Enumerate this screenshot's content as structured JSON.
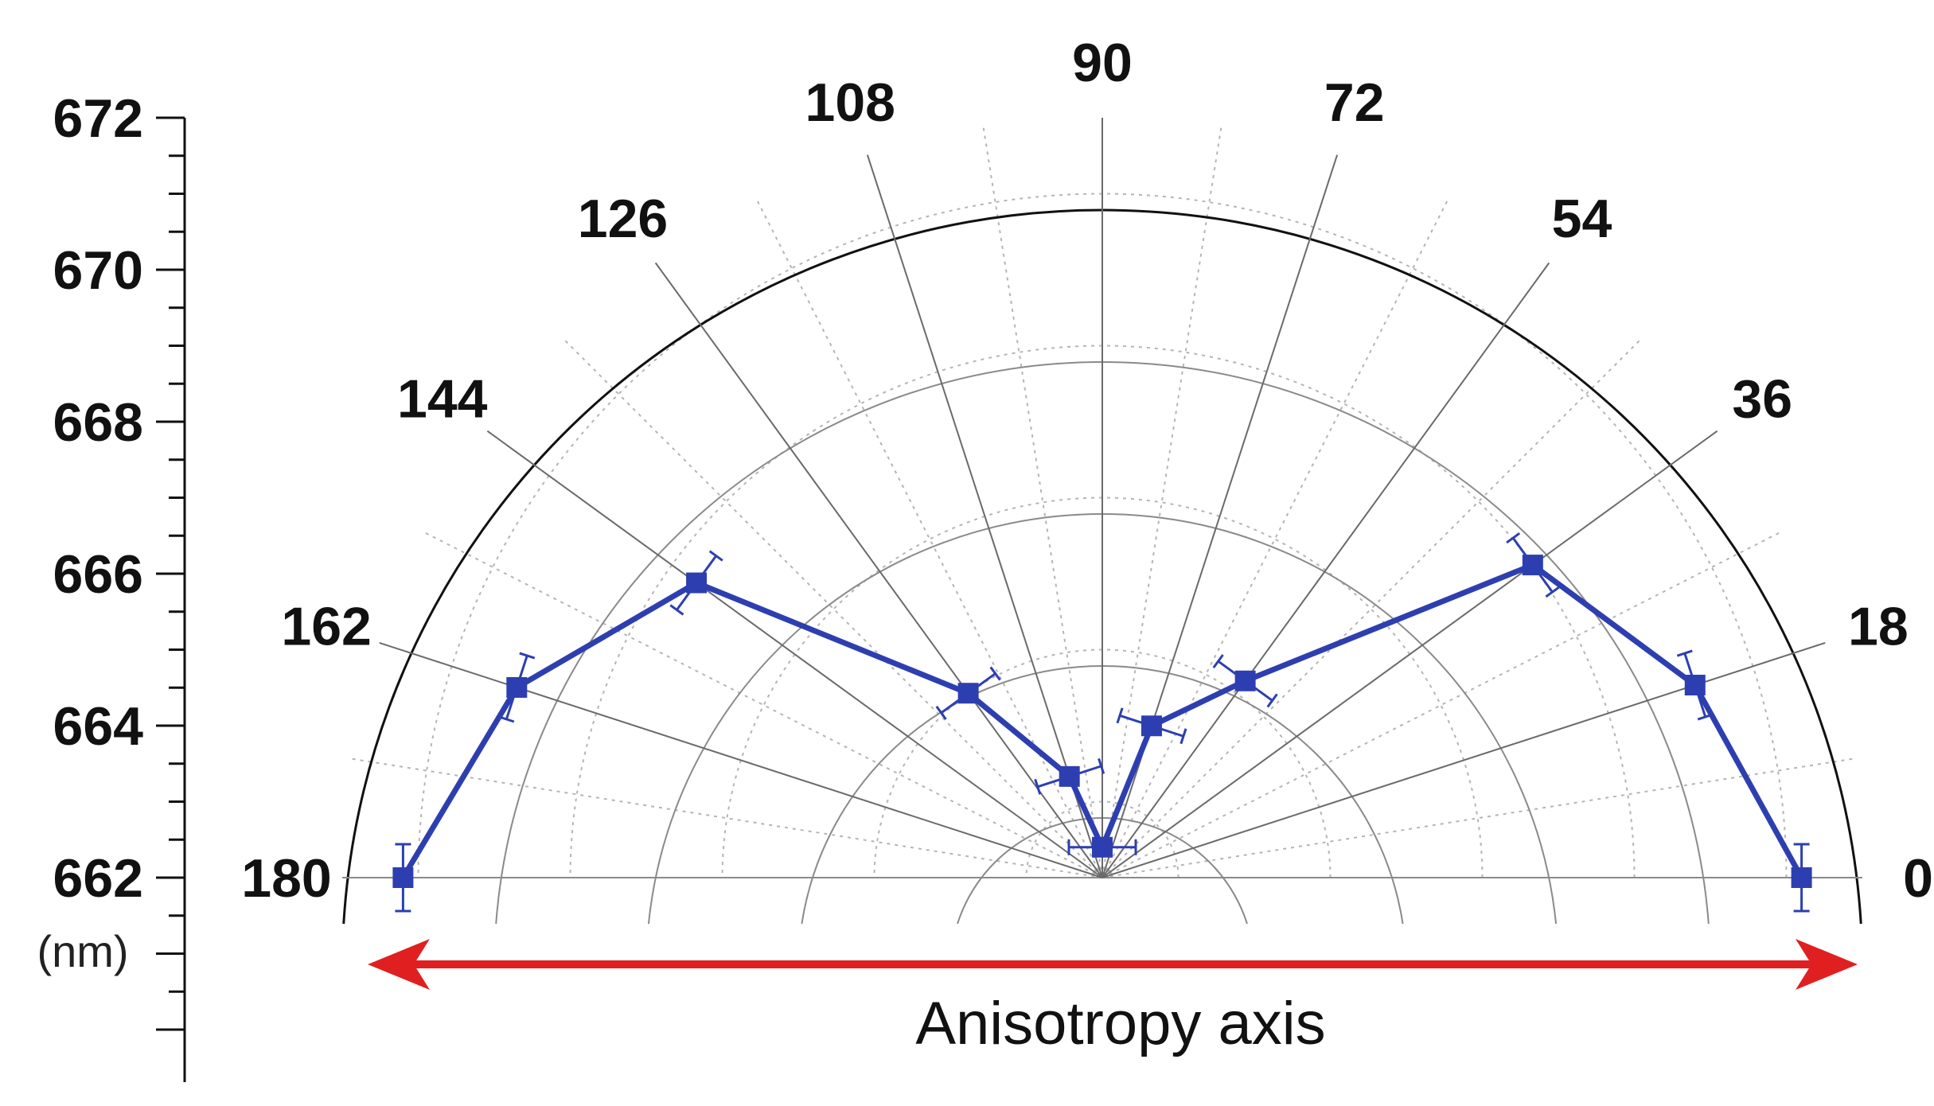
{
  "chart_data": {
    "type": "polar-line",
    "angular_unit": "degrees",
    "angle_range": [
      0,
      180
    ],
    "angle_ticks": [
      "0",
      "18",
      "36",
      "54",
      "72",
      "90",
      "108",
      "126",
      "144",
      "162",
      "180"
    ],
    "radial_ticks": [
      "662",
      "664",
      "666",
      "668",
      "670",
      "672"
    ],
    "radial_range": [
      662,
      672
    ],
    "radial_unit": "(nm)",
    "annotation": "Anisotropy axis",
    "series_color": "#2d3fb0",
    "arrow_color": "#e02020",
    "grid": true,
    "series": [
      {
        "points": [
          {
            "angle": 0,
            "r": 671.2
          },
          {
            "angle": 18,
            "r": 670.2
          },
          {
            "angle": 36,
            "r": 669.0
          },
          {
            "angle": 54,
            "r": 665.2
          },
          {
            "angle": 72,
            "r": 664.1
          },
          {
            "angle": 90,
            "r": 662.4
          },
          {
            "angle": 108,
            "r": 663.4
          },
          {
            "angle": 126,
            "r": 665.0
          },
          {
            "angle": 144,
            "r": 668.6
          },
          {
            "angle": 162,
            "r": 670.1
          },
          {
            "angle": 180,
            "r": 671.2
          }
        ]
      }
    ]
  }
}
